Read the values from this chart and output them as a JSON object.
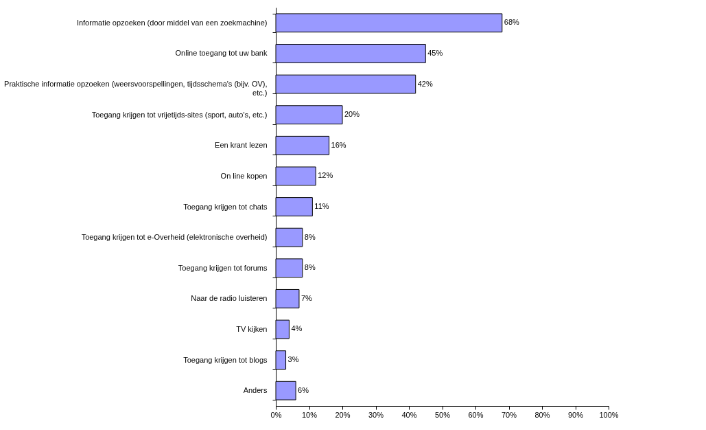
{
  "chart_data": {
    "type": "bar",
    "orientation": "horizontal",
    "categories": [
      "Informatie opzoeken (door middel van een zoekmachine)",
      "Online toegang tot uw bank",
      "Praktische informatie opzoeken (weersvoorspellingen, tijdsschema's (bijv. OV), etc.)",
      "Toegang krijgen tot vrijetijds-sites (sport, auto's, etc.)",
      "Een krant lezen",
      "On line kopen",
      "Toegang krijgen tot chats",
      "Toegang krijgen tot e-Overheid (elektronische overheid)",
      "Toegang krijgen tot forums",
      "Naar de radio luisteren",
      "TV kijken",
      "Toegang krijgen tot blogs",
      "Anders"
    ],
    "values": [
      68,
      45,
      42,
      20,
      16,
      12,
      11,
      8,
      8,
      7,
      4,
      3,
      6
    ],
    "value_labels": [
      "68%",
      "45%",
      "42%",
      "20%",
      "16%",
      "12%",
      "11%",
      "8%",
      "8%",
      "7%",
      "4%",
      "3%",
      "6%"
    ],
    "color": "#9999ff",
    "xlim": [
      0,
      100
    ],
    "xticks": [
      {
        "value": 0,
        "label": "0%"
      },
      {
        "value": 10,
        "label": "10%"
      },
      {
        "value": 20,
        "label": "20%"
      },
      {
        "value": 30,
        "label": "30%"
      },
      {
        "value": 40,
        "label": "40%"
      },
      {
        "value": 50,
        "label": "50%"
      },
      {
        "value": 60,
        "label": "60%"
      },
      {
        "value": 70,
        "label": "70%"
      },
      {
        "value": 80,
        "label": "80%"
      },
      {
        "value": 90,
        "label": "90%"
      },
      {
        "value": 100,
        "label": "100%"
      }
    ],
    "grid": false
  }
}
